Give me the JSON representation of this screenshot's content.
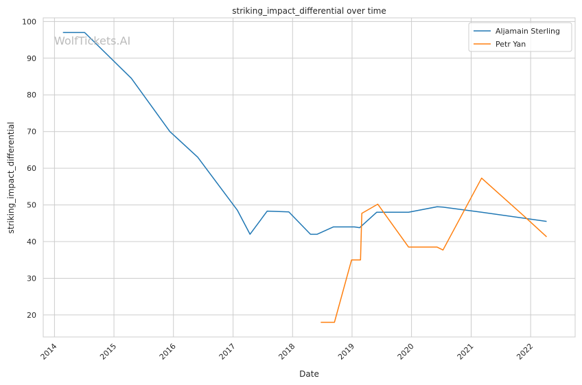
{
  "chart_data": {
    "type": "line",
    "title": "striking_impact_differential over time",
    "xlabel": "Date",
    "ylabel": "striking_impact_differential",
    "watermark": "WolfTickets.AI",
    "x_ticks": [
      "2014",
      "2015",
      "2016",
      "2017",
      "2018",
      "2019",
      "2020",
      "2021",
      "2022"
    ],
    "y_ticks": [
      20,
      30,
      40,
      50,
      60,
      70,
      80,
      90,
      100
    ],
    "xlim": [
      "2013-10-24",
      "2022-10-01"
    ],
    "ylim": [
      14,
      101
    ],
    "grid": true,
    "legend_position": "top-right",
    "series": [
      {
        "name": "Aljamain Sterling",
        "color": "#1f77b4",
        "points": [
          [
            "2014-02-22",
            97.0
          ],
          [
            "2014-07-05",
            97.0
          ],
          [
            "2015-04-18",
            84.5
          ],
          [
            "2015-12-10",
            70.0
          ],
          [
            "2016-05-29",
            63.0
          ],
          [
            "2017-01-28",
            48.5
          ],
          [
            "2017-04-15",
            42.0
          ],
          [
            "2017-07-29",
            48.3
          ],
          [
            "2017-12-09",
            48.1
          ],
          [
            "2018-04-21",
            42.0
          ],
          [
            "2018-06-01",
            42.0
          ],
          [
            "2018-09-08",
            44.0
          ],
          [
            "2019-01-15",
            44.0
          ],
          [
            "2019-02-17",
            43.8
          ],
          [
            "2019-06-01",
            48.0
          ],
          [
            "2019-12-14",
            48.0
          ],
          [
            "2020-06-06",
            49.5
          ],
          [
            "2020-07-10",
            49.4
          ],
          [
            "2021-03-06",
            48.0
          ],
          [
            "2022-04-09",
            45.5
          ]
        ]
      },
      {
        "name": "Petr Yan",
        "color": "#ff7f0e",
        "points": [
          [
            "2018-06-23",
            18.0
          ],
          [
            "2018-09-15",
            18.0
          ],
          [
            "2018-12-29",
            35.0
          ],
          [
            "2019-02-22",
            35.0
          ],
          [
            "2019-03-02",
            47.7
          ],
          [
            "2019-06-08",
            50.2
          ],
          [
            "2019-12-14",
            38.5
          ],
          [
            "2020-06-06",
            38.5
          ],
          [
            "2020-07-12",
            37.7
          ],
          [
            "2021-03-06",
            57.3
          ],
          [
            "2021-11-20",
            47.0
          ],
          [
            "2022-04-09",
            41.3
          ]
        ]
      }
    ]
  }
}
